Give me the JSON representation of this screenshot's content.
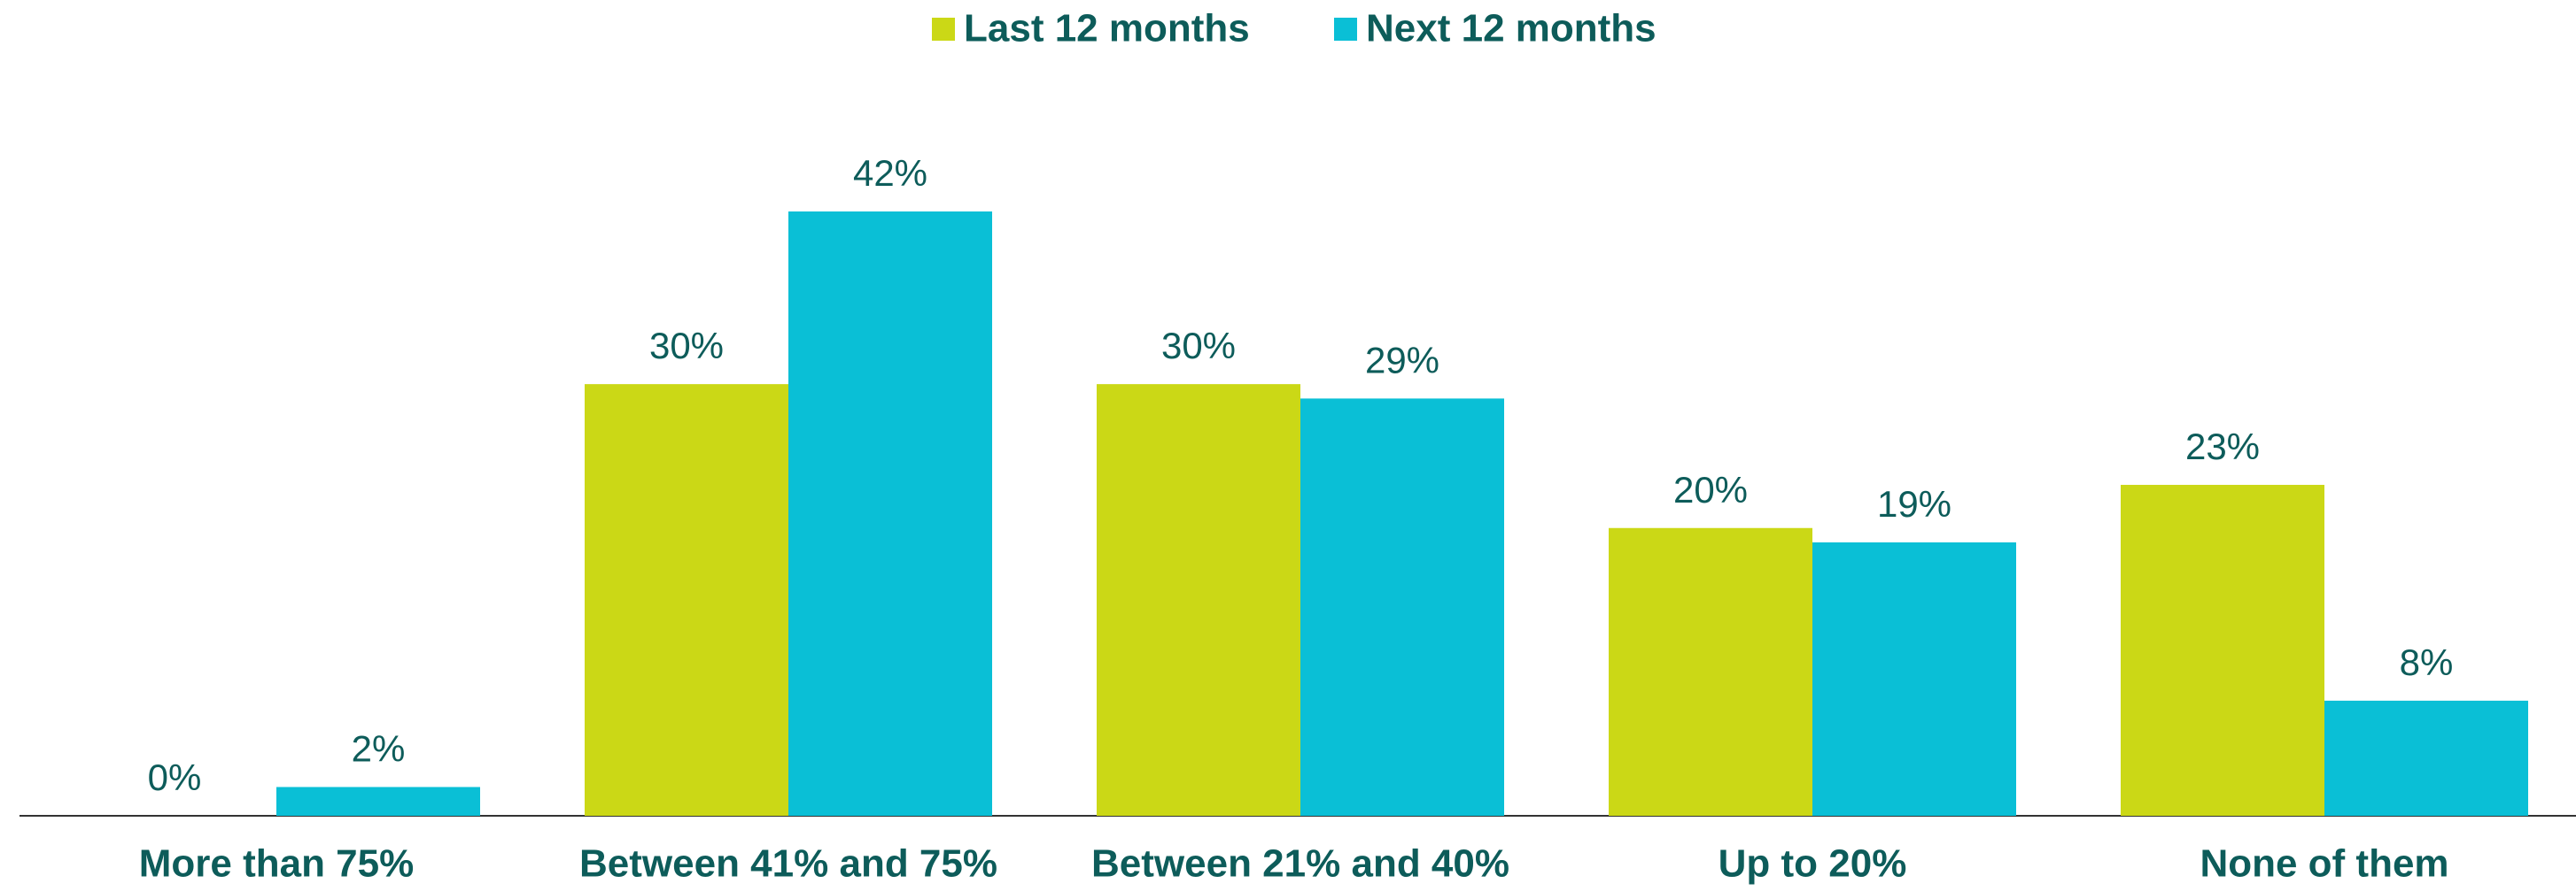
{
  "chart_data": {
    "type": "bar",
    "categories": [
      "More than 75%",
      "Between 41% and 75%",
      "Between 21% and 40%",
      "Up to 20%",
      "None of them"
    ],
    "series": [
      {
        "name": "Last 12 months",
        "color": "#cbd816",
        "values": [
          0,
          30,
          30,
          20,
          23
        ],
        "value_labels": [
          "0%",
          "30%",
          "30%",
          "20%",
          "23%"
        ]
      },
      {
        "name": "Next 12 months",
        "color": "#0abfd6",
        "values": [
          2,
          42,
          29,
          19,
          8
        ],
        "value_labels": [
          "2%",
          "42%",
          "29%",
          "19%",
          "8%"
        ]
      }
    ],
    "legend": "top"
  }
}
